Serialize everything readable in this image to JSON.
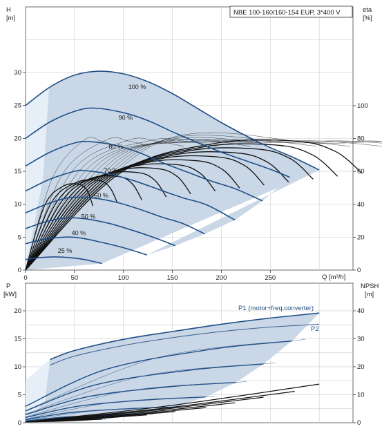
{
  "title": "NBE 100-160/160-154 EUP, 3*400 V",
  "colors": {
    "band": "#c9d7e6",
    "band_light": "#e6eef7",
    "curve_main": "#1f4e87",
    "curve_thin": "#3b5f8f",
    "grid": "#d4d4d4",
    "black": "#111111"
  },
  "chart_data": [
    {
      "type": "line",
      "name": "head",
      "ylabel_left": [
        "H",
        "[m]"
      ],
      "ylabel_right": [
        "eta",
        "[%]"
      ],
      "xlabel": "Q [m³/h]",
      "x_ticks": [
        0,
        50,
        100,
        150,
        200,
        250
      ],
      "xlim": [
        0,
        310
      ],
      "y_left_ticks": [
        0,
        5,
        10,
        15,
        20,
        25,
        30
      ],
      "ylim_left": [
        0,
        40
      ],
      "y_right_ticks": [
        0,
        20,
        40,
        60,
        80,
        100
      ],
      "ylim_right": [
        0,
        160
      ],
      "speed_labels": [
        {
          "text": "100 %",
          "q": 105,
          "h": 27.5
        },
        {
          "text": "90 %",
          "q": 95,
          "h": 22.8
        },
        {
          "text": "80 %",
          "q": 85,
          "h": 18.4
        },
        {
          "text": "70 %",
          "q": 80,
          "h": 14.8
        },
        {
          "text": "60 %",
          "q": 70,
          "h": 11.0
        },
        {
          "text": "50 %",
          "q": 57,
          "h": 7.8
        },
        {
          "text": "40 %",
          "q": 47,
          "h": 5.3
        },
        {
          "text": "25 %",
          "q": 33,
          "h": 2.6
        }
      ],
      "head_curves": [
        {
          "speed": 100,
          "points": [
            [
              0,
              25.0
            ],
            [
              25,
              27.8
            ],
            [
              50,
              29.6
            ],
            [
              75,
              30.2
            ],
            [
              100,
              29.8
            ],
            [
              125,
              28.6
            ],
            [
              150,
              26.8
            ],
            [
              175,
              24.6
            ],
            [
              200,
              22.4
            ],
            [
              225,
              20.4
            ],
            [
              250,
              18.6
            ],
            [
              275,
              17.0
            ],
            [
              300,
              15.2
            ]
          ]
        },
        {
          "speed": 90,
          "points": [
            [
              0,
              20.0
            ],
            [
              25,
              22.5
            ],
            [
              50,
              24.1
            ],
            [
              70,
              24.6
            ],
            [
              100,
              23.9
            ],
            [
              125,
              22.7
            ],
            [
              150,
              21.0
            ],
            [
              175,
              19.4
            ],
            [
              200,
              17.9
            ],
            [
              225,
              16.6
            ],
            [
              250,
              15.3
            ],
            [
              270,
              14.1
            ]
          ]
        },
        {
          "speed": 80,
          "points": [
            [
              0,
              15.8
            ],
            [
              25,
              17.9
            ],
            [
              50,
              19.3
            ],
            [
              65,
              19.5
            ],
            [
              90,
              19.0
            ],
            [
              115,
              17.9
            ],
            [
              140,
              16.3
            ],
            [
              165,
              14.9
            ],
            [
              190,
              13.5
            ],
            [
              215,
              12.3
            ],
            [
              242,
              10.5
            ]
          ]
        },
        {
          "speed": 70,
          "points": [
            [
              0,
              12.0
            ],
            [
              25,
              13.8
            ],
            [
              50,
              15.0
            ],
            [
              60,
              15.1
            ],
            [
              85,
              14.6
            ],
            [
              110,
              13.6
            ],
            [
              135,
              12.3
            ],
            [
              160,
              11.0
            ],
            [
              185,
              9.9
            ],
            [
              214,
              7.6
            ]
          ]
        },
        {
          "speed": 60,
          "points": [
            [
              0,
              8.7
            ],
            [
              25,
              10.2
            ],
            [
              45,
              11.0
            ],
            [
              65,
              11.0
            ],
            [
              90,
              10.4
            ],
            [
              115,
              9.3
            ],
            [
              140,
              8.0
            ],
            [
              160,
              7.1
            ],
            [
              183,
              5.5
            ]
          ]
        },
        {
          "speed": 50,
          "points": [
            [
              0,
              6.3
            ],
            [
              20,
              7.3
            ],
            [
              40,
              7.9
            ],
            [
              60,
              7.8
            ],
            [
              85,
              7.1
            ],
            [
              110,
              6.0
            ],
            [
              130,
              5.0
            ],
            [
              153,
              3.7
            ]
          ]
        },
        {
          "speed": 40,
          "points": [
            [
              0,
              4.0
            ],
            [
              20,
              4.7
            ],
            [
              40,
              5.0
            ],
            [
              55,
              4.9
            ],
            [
              75,
              4.3
            ],
            [
              100,
              3.4
            ],
            [
              124,
              2.3
            ]
          ]
        },
        {
          "speed": 25,
          "points": [
            [
              0,
              1.6
            ],
            [
              15,
              1.9
            ],
            [
              30,
              2.0
            ],
            [
              45,
              1.9
            ],
            [
              60,
              1.6
            ],
            [
              78,
              1.0
            ]
          ]
        }
      ],
      "eta_fan_peaks_q": [
        55,
        75,
        95,
        115,
        135,
        155,
        175,
        195,
        215,
        235,
        255,
        275
      ]
    },
    {
      "type": "line",
      "name": "power",
      "ylabel_left": [
        "P",
        "[kW]"
      ],
      "ylabel_right": [
        "NPSH",
        "[m]"
      ],
      "y_left_ticks": [
        0,
        5,
        10,
        15,
        20
      ],
      "ylim_left": [
        0,
        21.5
      ],
      "y_right_ticks": [
        0,
        10,
        20,
        30,
        40
      ],
      "ylim_right": [
        0,
        43
      ],
      "series_labels": [
        "P1 (motor+freq.converter)",
        "P2"
      ],
      "p1_curve": [
        [
          25,
          11.3
        ],
        [
          50,
          12.9
        ],
        [
          100,
          14.9
        ],
        [
          150,
          16.3
        ],
        [
          200,
          17.6
        ],
        [
          250,
          18.7
        ],
        [
          300,
          19.6
        ]
      ],
      "p2_curve": [
        [
          25,
          10.3
        ],
        [
          50,
          11.9
        ],
        [
          100,
          13.8
        ],
        [
          150,
          15.2
        ],
        [
          200,
          16.3
        ],
        [
          250,
          17.1
        ],
        [
          300,
          17.6
        ]
      ],
      "speed_power_ends": [
        {
          "q": 272,
          "p": 14.6
        },
        {
          "q": 243,
          "p": 10.5
        },
        {
          "q": 215,
          "p": 7.2
        },
        {
          "q": 184,
          "p": 4.6
        },
        {
          "q": 153,
          "p": 2.8
        },
        {
          "q": 124,
          "p": 1.5
        },
        {
          "q": 78,
          "p": 0.6
        }
      ],
      "npsh_lines": [
        {
          "q_end": 300,
          "npsh_end": 13.8
        },
        {
          "q_end": 275,
          "npsh_end": 11.2
        },
        {
          "q_end": 243,
          "npsh_end": 9.1
        },
        {
          "q_end": 214,
          "npsh_end": 7.1
        },
        {
          "q_end": 184,
          "npsh_end": 5.4
        },
        {
          "q_end": 153,
          "npsh_end": 4.0
        },
        {
          "q_end": 124,
          "npsh_end": 2.8
        },
        {
          "q_end": 78,
          "npsh_end": 1.3
        }
      ]
    }
  ]
}
